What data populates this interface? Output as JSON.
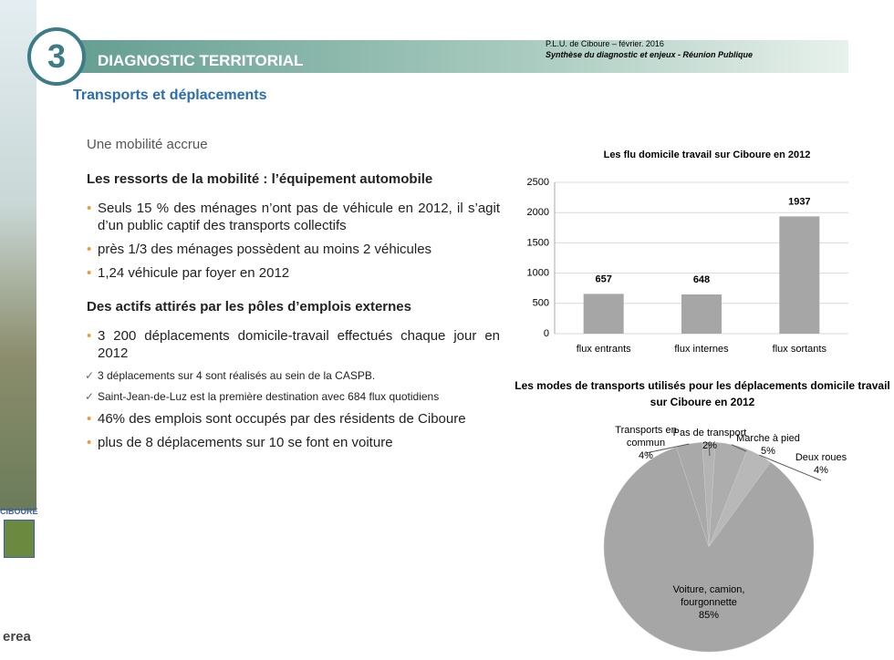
{
  "header": {
    "number": "3",
    "title": "DIAGNOSTIC TERRITORIAL",
    "meta_line1": "P.L.U. de Ciboure – février. 2016",
    "meta_line2": "Synthèse du diagnostic et enjeux - Réunion Publique"
  },
  "section_title": "Transports et déplacements",
  "subtitle": "Une mobilité accrue",
  "blocks": [
    {
      "heading": "Les ressorts de la mobilité : l’équipement automobile",
      "items": [
        {
          "kind": "bullet",
          "text": "Seuls 15 % des ménages n’ont pas de véhicule en 2012, il s’agit d’un public captif des transports collectifs"
        },
        {
          "kind": "bullet",
          "text": "près 1/3 des ménages possèdent au moins 2 véhicules"
        },
        {
          "kind": "bullet",
          "text": "1,24 véhicule par foyer en 2012"
        }
      ]
    },
    {
      "heading": "Des actifs attirés par les pôles d’emplois externes",
      "items": [
        {
          "kind": "bullet",
          "text": "3 200 déplacements domicile-travail effectués chaque jour en 2012"
        },
        {
          "kind": "check",
          "text": "3 déplacements sur 4 sont réalisés au sein de la CASPB."
        },
        {
          "kind": "check",
          "text": "Saint-Jean-de-Luz est la première destination avec 684 flux quotidiens"
        },
        {
          "kind": "bullet",
          "text": "46% des emplois sont occupés par des résidents de Ciboure"
        },
        {
          "kind": "bullet",
          "text": "plus de 8 déplacements sur 10 se font en voiture"
        }
      ]
    }
  ],
  "logos": {
    "town": "CIBOURE",
    "firm": "erea"
  },
  "chart_data": [
    {
      "type": "bar",
      "title": "Les flu domicile travail sur Ciboure en 2012",
      "categories": [
        "flux entrants",
        "flux internes",
        "flux sortants"
      ],
      "values": [
        657,
        648,
        1937
      ],
      "color": "#a6a6a6",
      "ylim": [
        0,
        2500
      ],
      "yticks": [
        0,
        500,
        1000,
        1500,
        2000,
        2500
      ],
      "grid": true
    },
    {
      "type": "pie",
      "title": "Les modes de transports utilisés pour les déplacements domicile travail sur Ciboure en 2012",
      "categories": [
        "Transports en commun",
        "Pas de transport",
        "Marche à pied",
        "Deux roues",
        "Voiture, camion, fourgonnette"
      ],
      "values": [
        4,
        2,
        5,
        4,
        85
      ],
      "value_labels": [
        "4%",
        "2%",
        "5%",
        "4%",
        "85%"
      ],
      "colors": [
        "#a9a9a9",
        "#b4b4b4",
        "#adadad",
        "#b8b8b8",
        "#a6a6a6"
      ]
    }
  ]
}
